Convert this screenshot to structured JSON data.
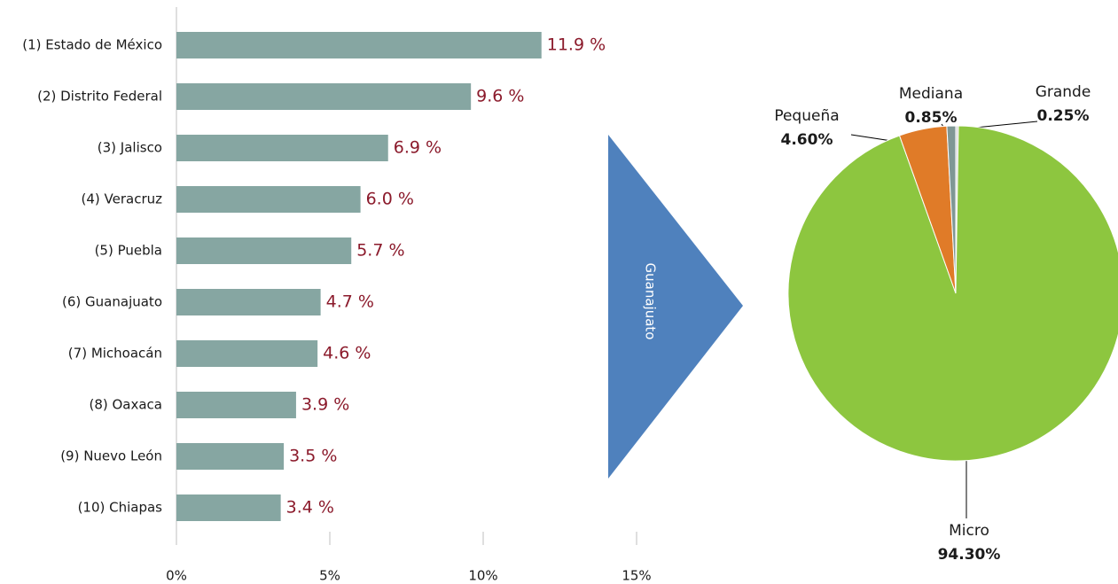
{
  "chart_data": [
    {
      "type": "bar",
      "categories": [
        "(1) Estado de México",
        "(2) Distrito Federal",
        "(3) Jalisco",
        "(4) Veracruz",
        "(5) Puebla",
        "(6) Guanajuato",
        "(7) Michoacán",
        "(8) Oaxaca",
        "(9) Nuevo León",
        "(10) Chiapas"
      ],
      "values": [
        11.9,
        9.6,
        6.9,
        6.0,
        5.7,
        4.7,
        4.6,
        3.9,
        3.5,
        3.4
      ],
      "value_labels": [
        "11.9 %",
        "9.6 %",
        "6.9 %",
        "6.0 %",
        "5.7 %",
        "4.7 %",
        "4.6 %",
        "3.9 %",
        "3.5 %",
        "3.4 %"
      ],
      "color": "#86a6a2",
      "xlim": [
        0,
        15
      ],
      "xticks": [
        {
          "value": 0,
          "label": "0%"
        },
        {
          "value": 5,
          "label": "5%"
        },
        {
          "value": 10,
          "label": "10%"
        },
        {
          "value": 15,
          "label": "15%"
        }
      ]
    },
    {
      "type": "pie",
      "categories": [
        "Grande",
        "Micro",
        "Pequeña",
        "Mediana"
      ],
      "values": [
        0.25,
        94.3,
        4.6,
        0.85
      ],
      "value_labels": [
        "0.25%",
        "94.30%",
        "4.60%",
        "0.85%"
      ],
      "colors": [
        "#d9d9d9",
        "#8dc63f",
        "#e07b28",
        "#7f9795"
      ]
    }
  ],
  "arrow": {
    "label": "Guanajuato"
  }
}
